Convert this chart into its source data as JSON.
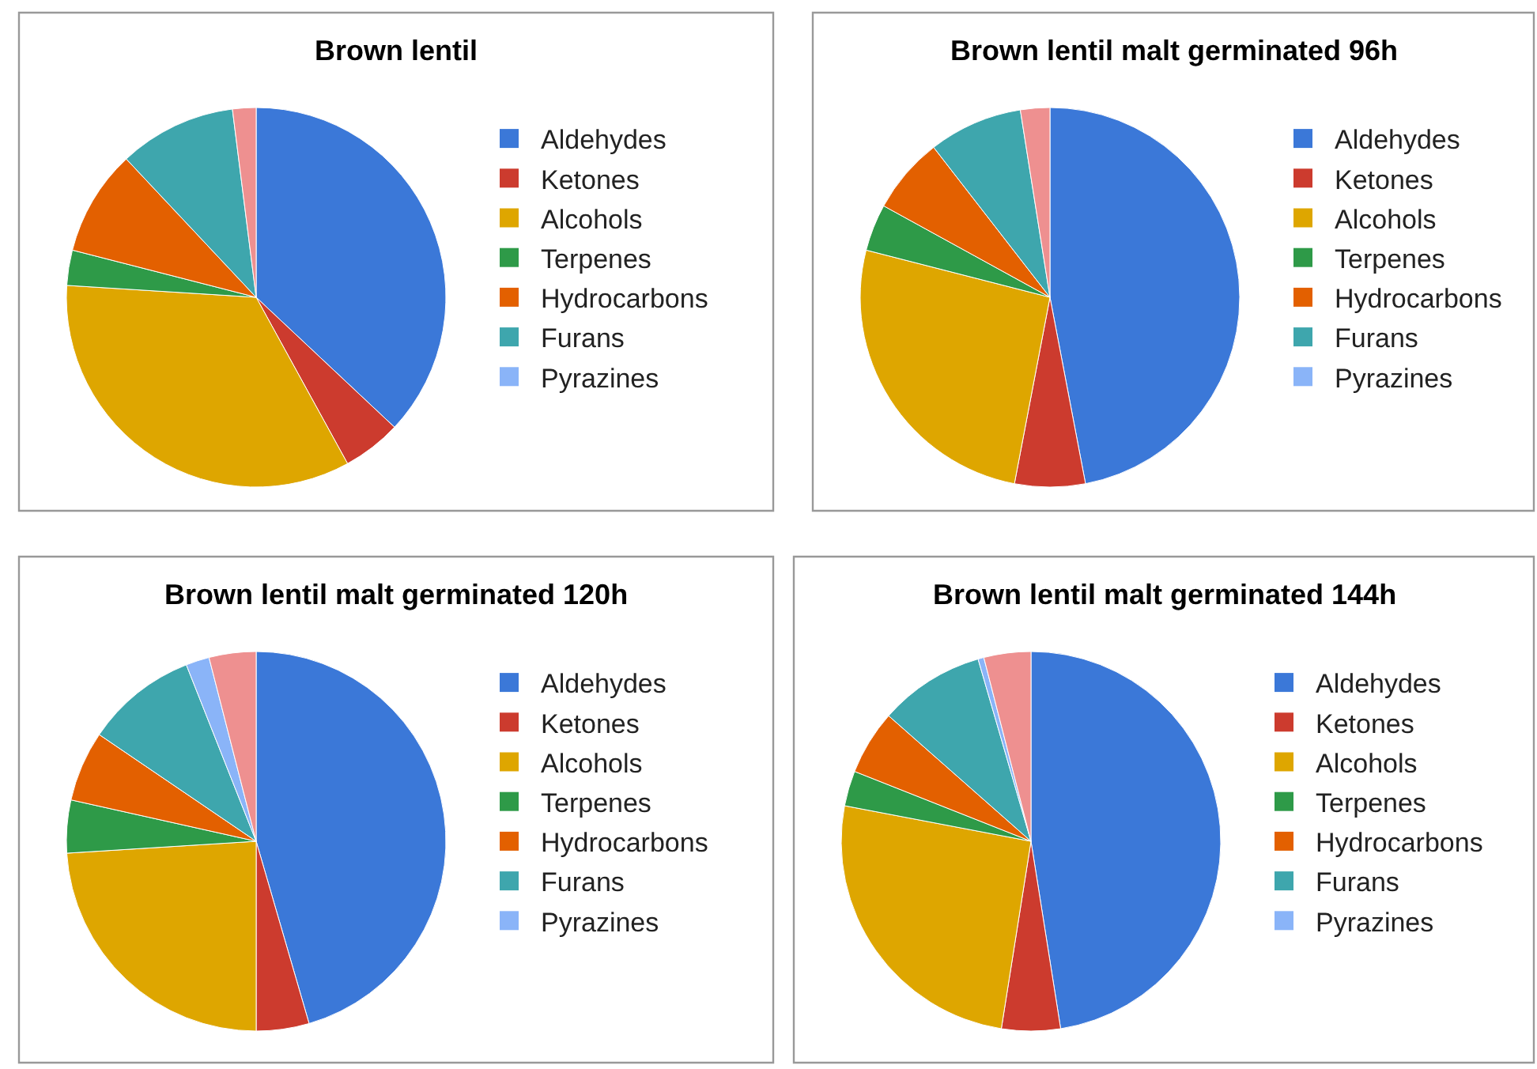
{
  "chart_data": [
    {
      "type": "pie",
      "title": "Brown lentil",
      "categories": [
        "Aldehydes",
        "Ketones",
        "Alcohols",
        "Terpenes",
        "Hydrocarbons",
        "Furans",
        "Pyrazines",
        null
      ],
      "values": [
        37,
        5,
        34,
        3,
        9,
        10,
        null,
        2
      ],
      "colors": [
        "#3b78d8",
        "#cc3b2e",
        "#dea600",
        "#2e9a48",
        "#e36000",
        "#3ea6ad",
        "#8ab4f8",
        "#ee9090"
      ],
      "legend": "right"
    },
    {
      "type": "pie",
      "title": "Brown lentil malt germinated 96h",
      "categories": [
        "Aldehydes",
        "Ketones",
        "Alcohols",
        "Terpenes",
        "Hydrocarbons",
        "Furans",
        "Pyrazines",
        null
      ],
      "values": [
        47,
        6,
        26,
        4,
        6.5,
        8,
        null,
        2.5
      ],
      "colors": [
        "#3b78d8",
        "#cc3b2e",
        "#dea600",
        "#2e9a48",
        "#e36000",
        "#3ea6ad",
        "#8ab4f8",
        "#ee9090"
      ],
      "legend": "right"
    },
    {
      "type": "pie",
      "title": "Brown lentil malt germinated 120h",
      "categories": [
        "Aldehydes",
        "Ketones",
        "Alcohols",
        "Terpenes",
        "Hydrocarbons",
        "Furans",
        "Pyrazines",
        null
      ],
      "values": [
        45.5,
        4.5,
        24,
        4.5,
        6,
        9.5,
        2,
        4
      ],
      "colors": [
        "#3b78d8",
        "#cc3b2e",
        "#dea600",
        "#2e9a48",
        "#e36000",
        "#3ea6ad",
        "#8ab4f8",
        "#ee9090"
      ],
      "legend": "right"
    },
    {
      "type": "pie",
      "title": "Brown lentil malt germinated 144h",
      "categories": [
        "Aldehydes",
        "Ketones",
        "Alcohols",
        "Terpenes",
        "Hydrocarbons",
        "Furans",
        "Pyrazines",
        null
      ],
      "values": [
        47.5,
        5,
        25.5,
        3,
        5.5,
        9,
        0.5,
        4
      ],
      "colors": [
        "#3b78d8",
        "#cc3b2e",
        "#dea600",
        "#2e9a48",
        "#e36000",
        "#3ea6ad",
        "#8ab4f8",
        "#ee9090"
      ],
      "legend": "right"
    }
  ]
}
